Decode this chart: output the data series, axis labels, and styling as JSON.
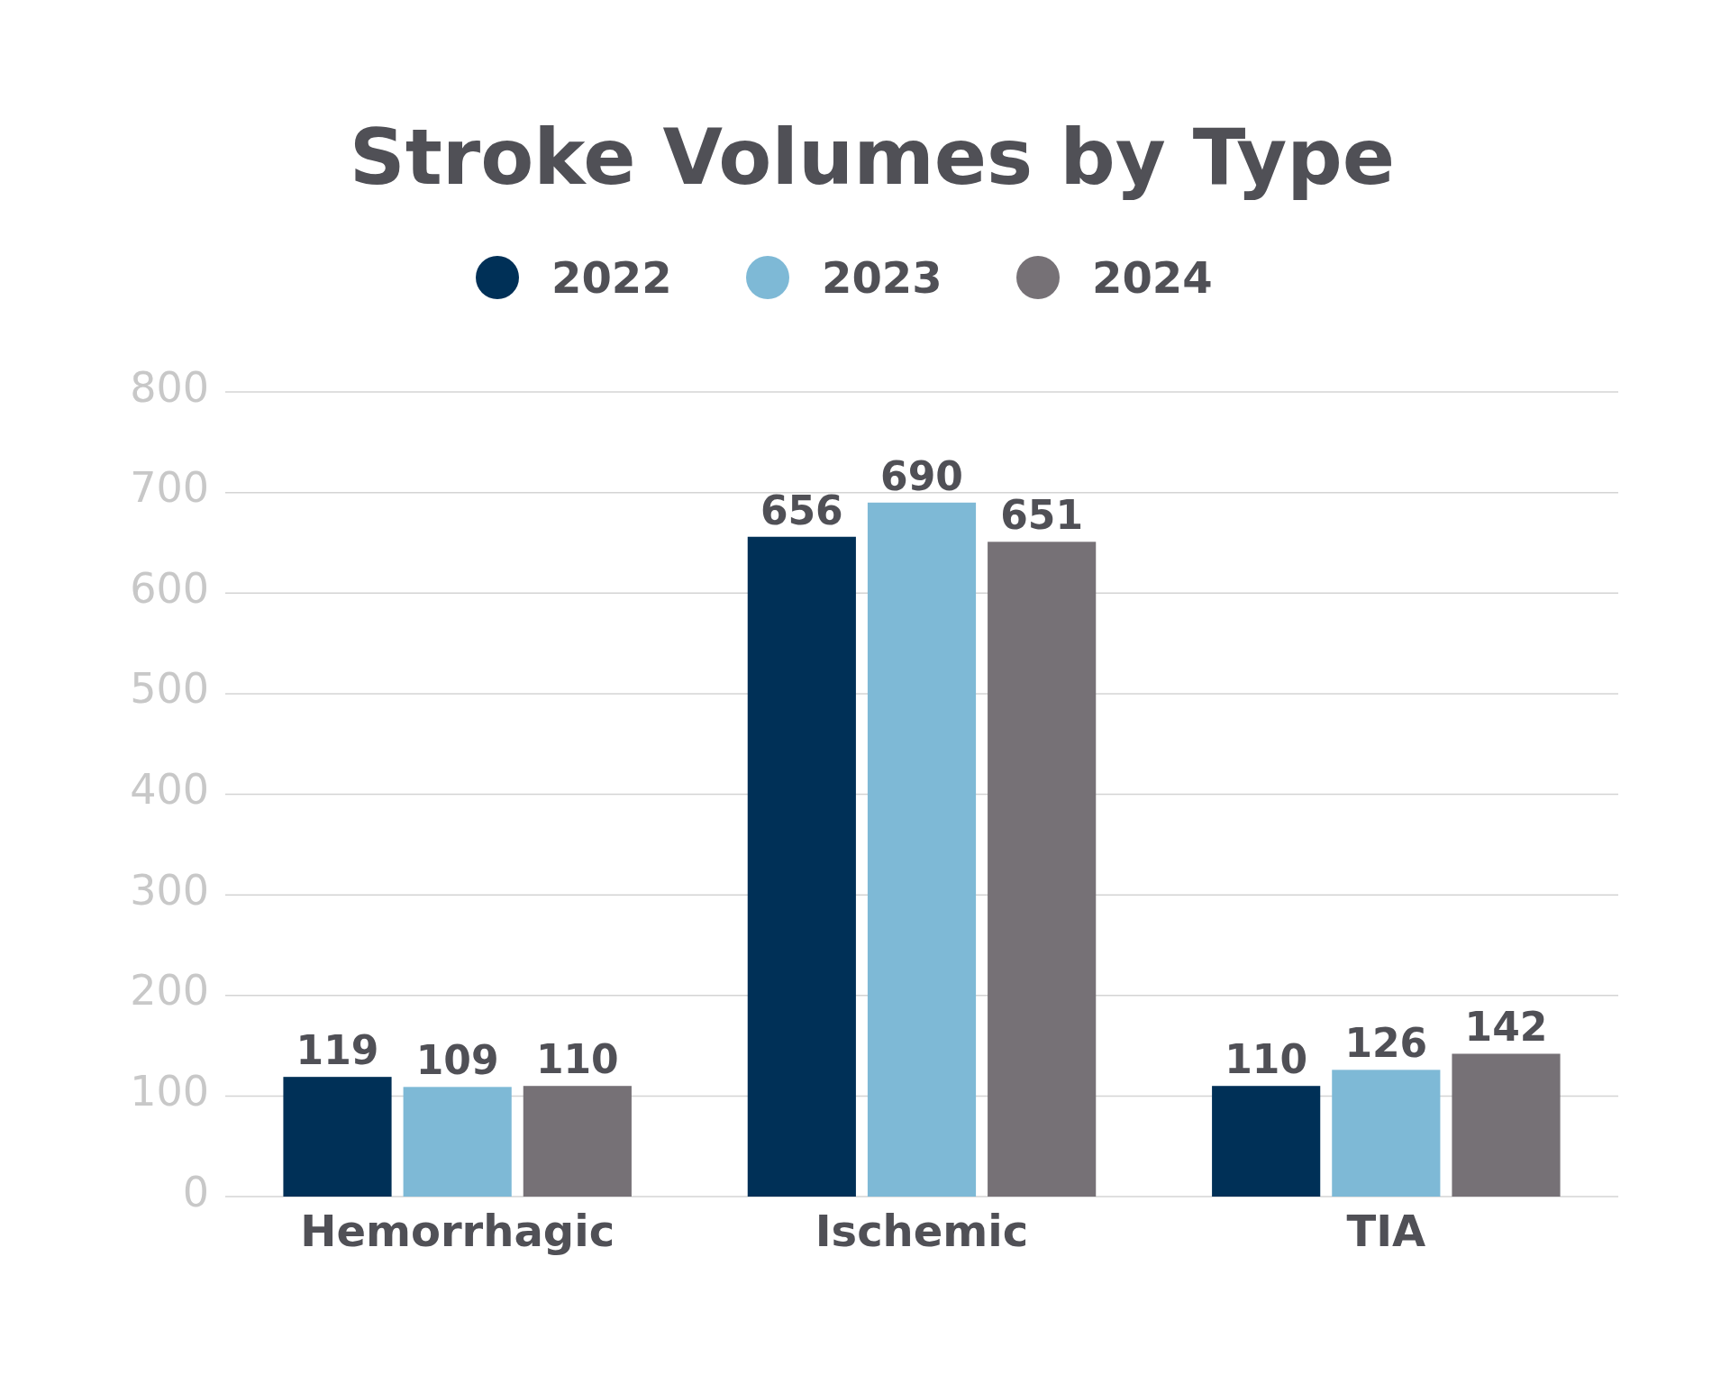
{
  "chart_data": {
    "type": "bar",
    "title": "Stroke Volumes by Type",
    "categories": [
      "Hemorrhagic",
      "Ischemic",
      "TIA"
    ],
    "series": [
      {
        "name": "2022",
        "color": "#003057",
        "values": [
          119,
          656,
          110
        ]
      },
      {
        "name": "2023",
        "color": "#7eb9d6",
        "values": [
          109,
          690,
          126
        ]
      },
      {
        "name": "2024",
        "color": "#767176",
        "values": [
          110,
          651,
          142
        ]
      }
    ],
    "ylim": [
      0,
      800
    ],
    "yticks": [
      0,
      100,
      200,
      300,
      400,
      500,
      600,
      700,
      800
    ],
    "grid": "y",
    "legend": "top",
    "data_labels": true
  }
}
